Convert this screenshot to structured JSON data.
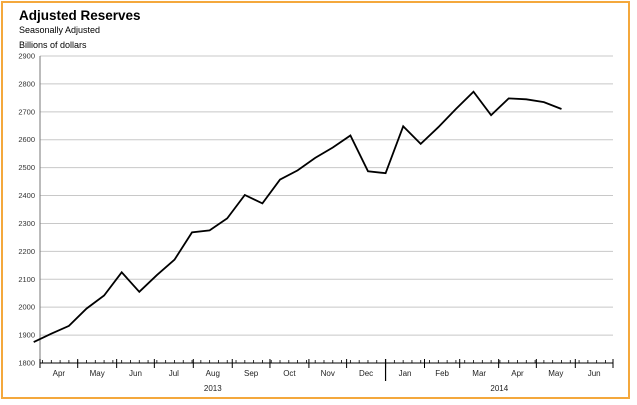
{
  "chart_data": {
    "type": "line",
    "title": "Adjusted Reserves",
    "subtitle": "Seasonally Adjusted",
    "ylabel": "Billions of dollars",
    "xlabel": "",
    "ylim": [
      1800,
      2900
    ],
    "yticks": [
      1800,
      1900,
      2000,
      2100,
      2200,
      2300,
      2400,
      2500,
      2600,
      2700,
      2800,
      2900
    ],
    "grid": true,
    "months": [
      "Apr",
      "May",
      "Jun",
      "Jul",
      "Aug",
      "Sep",
      "Oct",
      "Nov",
      "Dec",
      "Jan",
      "Feb",
      "Mar",
      "Apr",
      "May",
      "Jun"
    ],
    "years": [
      "2013",
      "2014"
    ],
    "series": [
      {
        "x": [
          "2013-03-27",
          "2013-04-10",
          "2013-04-24",
          "2013-05-08",
          "2013-05-22",
          "2013-06-05",
          "2013-06-19",
          "2013-07-03",
          "2013-07-17",
          "2013-07-31",
          "2013-08-14",
          "2013-08-28",
          "2013-09-11",
          "2013-09-25",
          "2013-10-09",
          "2013-10-23",
          "2013-11-06",
          "2013-11-20",
          "2013-12-04",
          "2013-12-18",
          "2014-01-01",
          "2014-01-15",
          "2014-01-29",
          "2014-02-12",
          "2014-02-26",
          "2014-03-12",
          "2014-03-26",
          "2014-04-09",
          "2014-04-23",
          "2014-05-07",
          "2014-05-21"
        ],
        "values": [
          1875,
          1905,
          1933,
          1995,
          2042,
          2125,
          2055,
          2115,
          2170,
          2268,
          2275,
          2318,
          2402,
          2372,
          2457,
          2490,
          2535,
          2572,
          2615,
          2487,
          2480,
          2648,
          2585,
          2645,
          2710,
          2772,
          2688,
          2748,
          2745,
          2735,
          2710
        ]
      }
    ]
  }
}
